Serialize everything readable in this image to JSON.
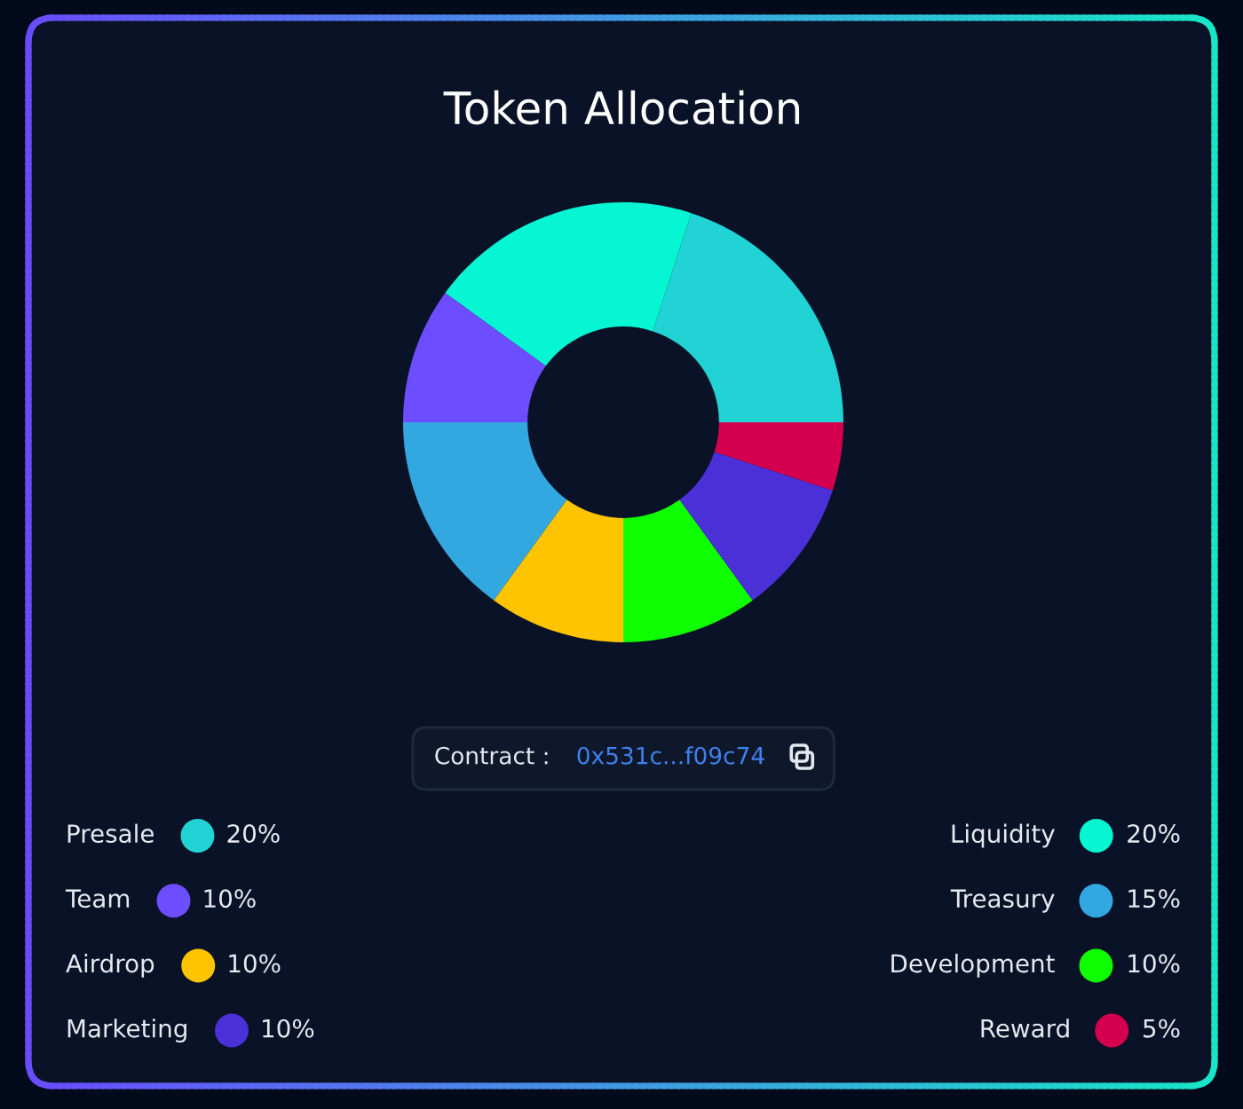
{
  "chart_data": {
    "type": "donut",
    "title": "Token Allocation",
    "categories": [
      "Presale",
      "Liquidity",
      "Team",
      "Treasury",
      "Airdrop",
      "Development",
      "Marketing",
      "Reward"
    ],
    "values": [
      20,
      20,
      10,
      15,
      10,
      10,
      10,
      5
    ],
    "colors": [
      "#22d3d6",
      "#06f5d2",
      "#6c4dff",
      "#33a8e0",
      "#ffc400",
      "#10ff00",
      "#4a30d6",
      "#d4004e"
    ],
    "value_labels": [
      "20%",
      "20%",
      "10%",
      "15%",
      "10%",
      "10%",
      "10%",
      "5%"
    ],
    "legend": "bottom",
    "annotations": [
      "Contract :",
      "0x531c...f09c74"
    ]
  }
}
